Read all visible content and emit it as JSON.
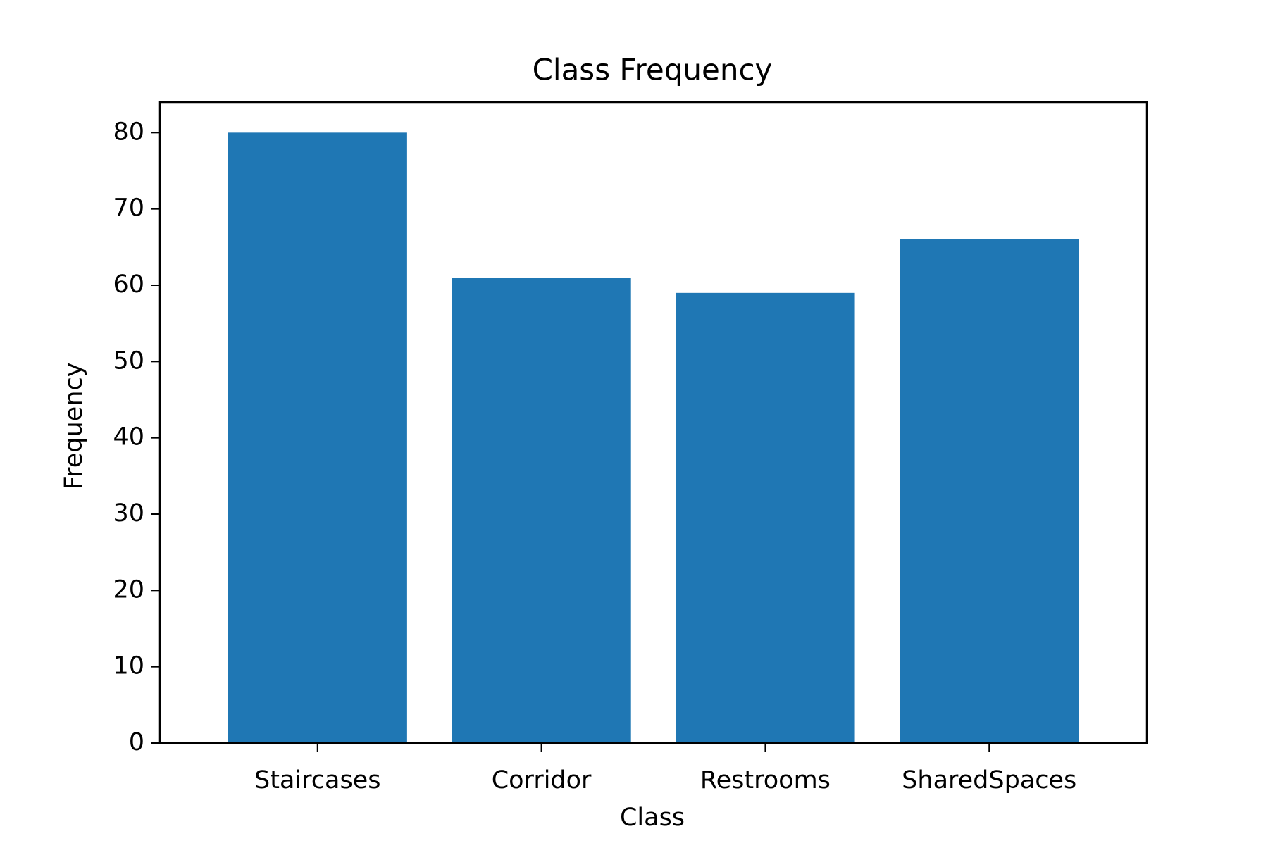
{
  "chart_data": {
    "type": "bar",
    "title": "Class Frequency",
    "xlabel": "Class",
    "ylabel": "Frequency",
    "categories": [
      "Staircases",
      "Corridor",
      "Restrooms",
      "SharedSpaces"
    ],
    "values": [
      80,
      61,
      59,
      66
    ],
    "ylim": [
      0,
      84
    ],
    "yticks": [
      "0",
      "10",
      "20",
      "30",
      "40",
      "50",
      "60",
      "70",
      "80"
    ],
    "grid": false,
    "legend": "none",
    "bar_color": "#1f77b4"
  }
}
